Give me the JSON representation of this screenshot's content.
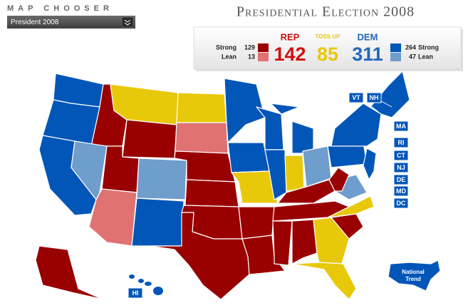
{
  "header": {
    "chooser_label": "MAP CHOOSER",
    "dropdown": "President 2008",
    "title": "Presidential Election 2008"
  },
  "scoreboard": {
    "rep": {
      "label": "REP",
      "total": 142,
      "strong_label": "Strong",
      "strong": 129,
      "lean_label": "Lean",
      "lean": 13
    },
    "tossup": {
      "label": "TOSS UP",
      "total": 85
    },
    "dem": {
      "label": "DEM",
      "total": 311,
      "strong_label": "Strong",
      "strong": 264,
      "lean_label": "Lean",
      "lean": 47
    }
  },
  "map": {
    "state_labels": [
      "VT",
      "NH",
      "MA",
      "RI",
      "CT",
      "NJ",
      "DE",
      "MD",
      "DC",
      "HI"
    ],
    "national_trend": "National Trend"
  }
}
